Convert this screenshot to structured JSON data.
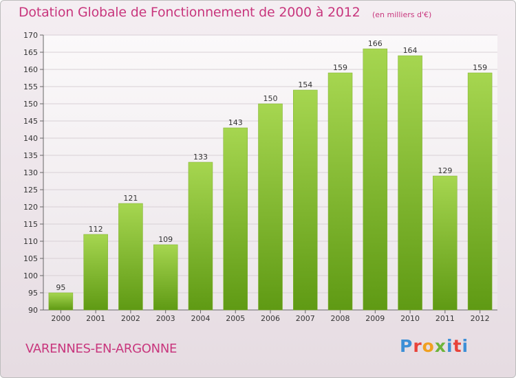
{
  "header": {
    "title": "Dotation Globale de Fonctionnement de 2000 à 2012",
    "subtitle": "(en milliers d'€)"
  },
  "footer": {
    "location": "VARENNES-EN-ARGONNE",
    "logo_letters": [
      "P",
      "r",
      "o",
      "x",
      "i",
      "t",
      "i"
    ]
  },
  "colors": {
    "accent": "#c8367d",
    "bar_top": "#a6d650",
    "bar_bottom": "#5f9a14"
  },
  "chart_data": {
    "type": "bar",
    "title": "Dotation Globale de Fonctionnement de 2000 à 2012",
    "subtitle": "(en milliers d'€)",
    "xlabel": "",
    "ylabel": "",
    "categories": [
      "2000",
      "2001",
      "2002",
      "2003",
      "2004",
      "2005",
      "2006",
      "2007",
      "2008",
      "2009",
      "2010",
      "2011",
      "2012"
    ],
    "values": [
      95,
      112,
      121,
      109,
      133,
      143,
      150,
      154,
      159,
      166,
      164,
      129,
      159
    ],
    "value_labels": [
      "95",
      "112",
      "121",
      "109",
      "133",
      "143",
      "150",
      "154",
      "159",
      "166",
      "164",
      "129",
      "159"
    ],
    "ylim": [
      90,
      170
    ],
    "yticks": [
      90,
      95,
      100,
      105,
      110,
      115,
      120,
      125,
      130,
      135,
      140,
      145,
      150,
      155,
      160,
      165,
      170
    ],
    "grid": true,
    "legend": "none"
  }
}
